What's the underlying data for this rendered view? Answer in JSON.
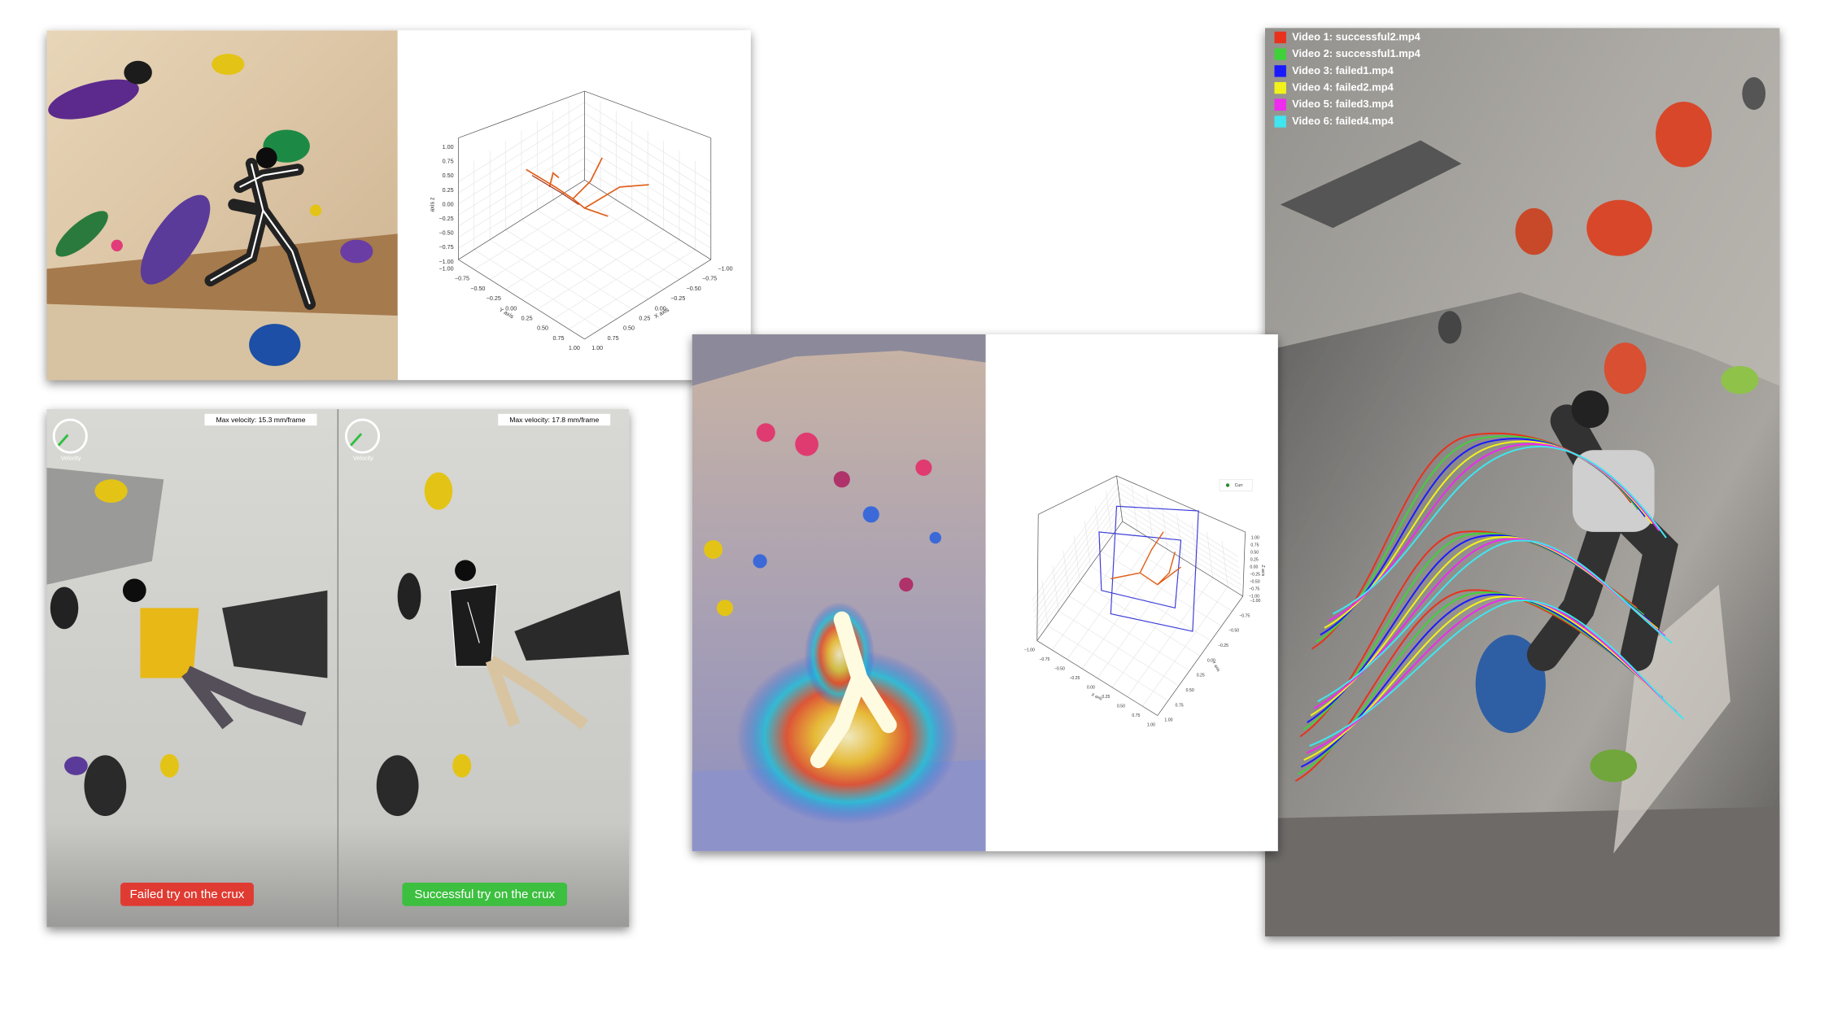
{
  "pose_3d_plot": {
    "z_label": "axis z",
    "y_label": "Y axis",
    "x_label": "X axis",
    "z_ticks": [
      "1.00",
      "0.75",
      "0.50",
      "0.25",
      "0.00",
      "−0.25",
      "−0.50",
      "−0.75",
      "−1.00"
    ],
    "y_ticks": [
      "−1.00",
      "−0.75",
      "−0.50",
      "−0.25",
      "0.00",
      "0.25",
      "0.50",
      "0.75",
      "1.00"
    ],
    "x_ticks": [
      "−1.00",
      "−0.75",
      "−0.50",
      "−0.25",
      "0.00",
      "0.25",
      "0.50",
      "0.75",
      "1.00"
    ]
  },
  "comparison": {
    "left": {
      "velocity_label": "Velocity",
      "max_velocity": "Max velocity: 15.3 mm/frame",
      "caption": "Failed try on the crux"
    },
    "right": {
      "velocity_label": "Velocity",
      "max_velocity": "Max velocity: 17.8 mm/frame",
      "caption": "Successful try on the crux"
    }
  },
  "heatmap_plot": {
    "legend": "Curr",
    "z_label": "Z axis",
    "y_label": "Y axis",
    "x_label": "X axis",
    "z_ticks": [
      "1.00",
      "0.75",
      "0.50",
      "0.25",
      "0.00",
      "−0.25",
      "−0.50",
      "−0.75",
      "−1.00"
    ],
    "y_ticks": [
      "−1.00",
      "−0.75",
      "−0.50",
      "−0.25",
      "0.00",
      "0.25",
      "0.50",
      "0.75",
      "1.00"
    ],
    "x_ticks": [
      "−1.00",
      "−0.75",
      "−0.50",
      "−0.25",
      "0.00",
      "0.25",
      "0.50",
      "0.75",
      "1.00"
    ]
  },
  "trajectories": {
    "legend": [
      {
        "label": "Video 1: successful2.mp4",
        "color": "#e8321e"
      },
      {
        "label": "Video 2: successful1.mp4",
        "color": "#3fd13a"
      },
      {
        "label": "Video 3: failed1.mp4",
        "color": "#1a1aff"
      },
      {
        "label": "Video 4: failed2.mp4",
        "color": "#f2f21a"
      },
      {
        "label": "Video 5: failed3.mp4",
        "color": "#ee2bee"
      },
      {
        "label": "Video 6: failed4.mp4",
        "color": "#3fe6f0"
      }
    ]
  }
}
